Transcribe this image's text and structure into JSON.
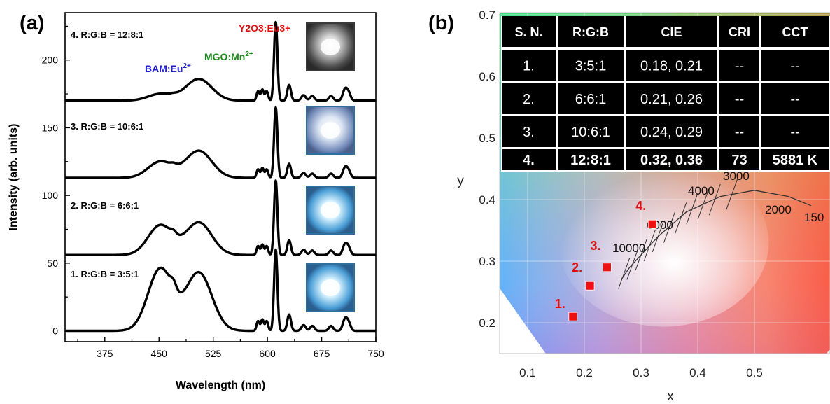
{
  "panel_a_label": "(a)",
  "panel_b_label": "(b)",
  "chart_data": [
    {
      "type": "line",
      "xlabel": "Wavelength (nm)",
      "ylabel": "Intensity (arb. units)",
      "xlim": [
        320,
        750
      ],
      "ylim": [
        -8,
        235
      ],
      "xticks": [
        375,
        450,
        525,
        600,
        675,
        750
      ],
      "yticks": [
        0,
        50,
        100,
        150,
        200
      ],
      "series": [
        {
          "name": "1. R:G:B = 3:5:1",
          "baseline": 0,
          "blue_peak": 46,
          "green_peak": 43,
          "red_peak": 60
        },
        {
          "name": "2. R:G:B = 6:6:1",
          "baseline": 56,
          "blue_peak": 22,
          "green_peak": 24,
          "red_peak": 55
        },
        {
          "name": "3. R:G:B = 10:6:1",
          "baseline": 113,
          "blue_peak": 12,
          "green_peak": 20,
          "red_peak": 52
        },
        {
          "name": "4. R:G:B = 12:8:1",
          "baseline": 170,
          "blue_peak": 5,
          "green_peak": 16,
          "red_peak": 58
        }
      ],
      "annotations": [
        {
          "base": "BAM:Eu",
          "sup": "2+",
          "color": "#2222cc"
        },
        {
          "base": "MGO:Mn",
          "sup": "2+",
          "color": "#1f8a1f"
        },
        {
          "text": "Y2O3:Eu3+",
          "color": "#dd1111"
        }
      ]
    },
    {
      "type": "scatter",
      "xlabel": "x",
      "ylabel": "y",
      "xlim": [
        0.05,
        0.6
      ],
      "ylim": [
        0.15,
        0.7
      ],
      "xticks": [
        0.1,
        0.2,
        0.3,
        0.4,
        0.5
      ],
      "yticks": [
        0.2,
        0.3,
        0.4,
        0.5,
        0.6,
        0.7
      ],
      "points": [
        {
          "label": "1.",
          "x": 0.18,
          "y": 0.21
        },
        {
          "label": "2.",
          "x": 0.21,
          "y": 0.26
        },
        {
          "label": "3.",
          "x": 0.24,
          "y": 0.29
        },
        {
          "label": "4.",
          "x": 0.32,
          "y": 0.36
        }
      ],
      "cct_labels": [
        "10000",
        "6000",
        "4000",
        "3000",
        "2000",
        "150"
      ],
      "table": {
        "headers": [
          "S. N.",
          "R:G:B",
          "CIE",
          "CRI",
          "CCT"
        ],
        "rows": [
          [
            "1.",
            "3:5:1",
            "0.18, 0.21",
            "--",
            "--"
          ],
          [
            "2.",
            "6:6:1",
            "0.21, 0.26",
            "--",
            "--"
          ],
          [
            "3.",
            "10:6:1",
            "0.24, 0.29",
            "--",
            "--"
          ],
          [
            "4.",
            "12:8:1",
            "0.32, 0.36",
            "73",
            "5881 K"
          ]
        ]
      }
    }
  ]
}
